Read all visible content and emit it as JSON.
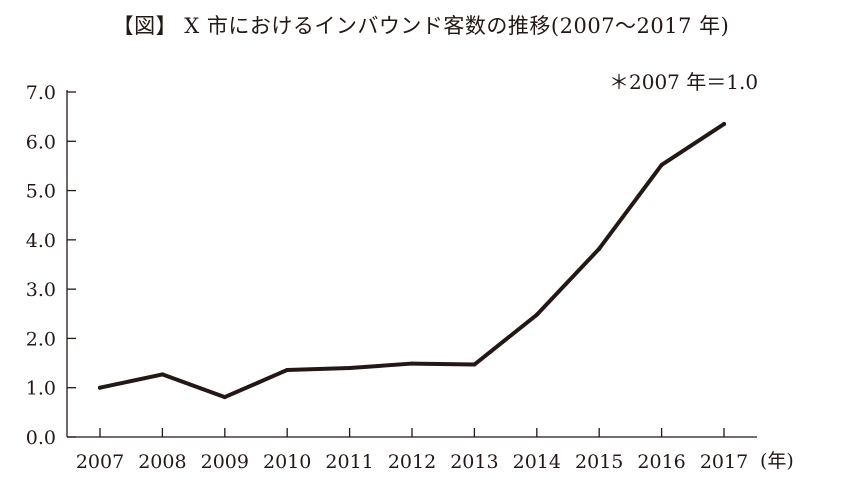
{
  "chart_data": {
    "type": "line",
    "title": "【図】 X 市におけるインバウンド客数の推移(2007〜2017 年)",
    "note": "＊2007 年＝1.0",
    "x_unit": "(年)",
    "categories": [
      "2007",
      "2008",
      "2009",
      "2010",
      "2011",
      "2012",
      "2013",
      "2014",
      "2015",
      "2016",
      "2017"
    ],
    "series": [
      {
        "values": [
          1.0,
          1.27,
          0.81,
          1.36,
          1.4,
          1.49,
          1.47,
          2.48,
          3.82,
          5.52,
          6.35
        ]
      }
    ],
    "yticks": [
      "0.0",
      "1.0",
      "2.0",
      "3.0",
      "4.0",
      "5.0",
      "6.0",
      "7.0"
    ],
    "ylim": [
      0,
      7
    ],
    "grid": false,
    "line_color": "#231815"
  }
}
